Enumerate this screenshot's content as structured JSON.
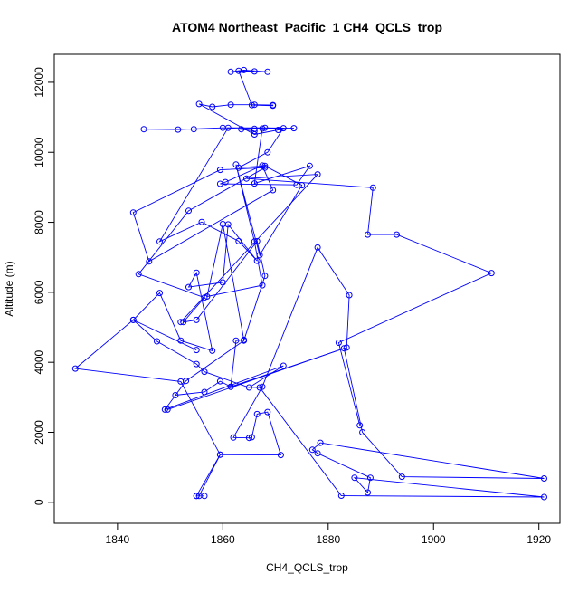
{
  "chart_data": {
    "type": "line",
    "title": "ATOM4 Northeast_Pacific_1 CH4_QCLS_trop",
    "xlabel": "CH4_QCLS_trop",
    "ylabel": "Altitude (m)",
    "xlim": [
      1828,
      1924
    ],
    "ylim": [
      -600,
      12800
    ],
    "xticks": [
      1840,
      1860,
      1880,
      1900,
      1920
    ],
    "yticks": [
      0,
      2000,
      4000,
      6000,
      8000,
      10000,
      12000
    ],
    "xtick_labels": [
      "1840",
      "1860",
      "1880",
      "1900",
      "1920"
    ],
    "ytick_labels": [
      "0",
      "2000",
      "4000",
      "6000",
      "8000",
      "10000",
      "12000"
    ],
    "grid": false,
    "marker": "open-circle",
    "series_color": "#0000ff",
    "series": [
      {
        "x": [
          1855.0,
          1856.5,
          1855.5,
          1859.5,
          1852.0,
          1832.0,
          1843.0,
          1847.5,
          1855.0,
          1856.5,
          1865.0,
          1871.5,
          1849.0,
          1853.0,
          1864.0,
          1868.0,
          1866.5,
          1855.0,
          1852.5,
          1856.5,
          1844.0,
          1853.5,
          1868.0,
          1859.5,
          1843.0,
          1846.0,
          1869.5,
          1867.5,
          1860.5,
          1859.5,
          1874.0,
          1876.5,
          1866.0,
          1867.5,
          1854.5,
          1845.0,
          1851.5,
          1860.0,
          1868.0,
          1873.5,
          1870.5,
          1866.0,
          1855.5,
          1858.0,
          1861.5,
          1866.0,
          1869.5,
          1869.5,
          1865.5,
          1863.0,
          1866.0,
          1861.5,
          1864.0,
          1868.5
        ],
        "y": [
          180,
          180,
          180,
          1360,
          3450,
          3820,
          5210,
          4600,
          3950,
          3730,
          3280,
          3900,
          2650,
          3470,
          4620,
          6470,
          7460,
          5210,
          5150,
          5850,
          6520,
          8330,
          9560,
          9500,
          8280,
          6880,
          8920,
          9620,
          9150,
          9100,
          9070,
          9610,
          9110,
          10680,
          10660,
          10660,
          10650,
          10700,
          10700,
          10690,
          10640,
          10510,
          11380,
          11300,
          11360,
          11360,
          11350,
          11330,
          11350,
          12330,
          12310,
          12300,
          12350,
          12300
        ]
      },
      {
        "x": [
          1855.0,
          1859.5,
          1871.0,
          1868.5,
          1866.5,
          1865.5,
          1865.0,
          1862.0,
          1867.5,
          1878.0,
          1884.0,
          1883.5,
          1861.5,
          1862.5,
          1864.0,
          1860.0,
          1857.0,
          1867.5,
          1866.0,
          1862.5,
          1867.0,
          1875.0,
          1868.0,
          1863.0,
          1868.5,
          1871.5,
          1866.0,
          1863.5,
          1866.0,
          1861.0,
          1848.0,
          1856.0,
          1863.0,
          1866.5,
          1861.0,
          1860.0,
          1853.5,
          1855.0,
          1858.0,
          1852.0,
          1848.0,
          1843.0,
          1855.0
        ],
        "y": [
          180,
          1360,
          1350,
          2580,
          2520,
          1860,
          1840,
          1850,
          3300,
          7280,
          5920,
          4420,
          3300,
          4620,
          4640,
          7950,
          5880,
          6200,
          7450,
          9650,
          7060,
          9060,
          9610,
          9560,
          10000,
          10690,
          10670,
          10660,
          10610,
          10700,
          7450,
          8010,
          7460,
          6900,
          7940,
          6280,
          6150,
          6560,
          4330,
          4620,
          5980,
          5210,
          4350
        ]
      },
      {
        "x": [
          1849.5,
          1883.0,
          1886.5,
          1894.0,
          1921.0,
          1878.5,
          1877.0,
          1878.0,
          1888.0,
          1887.5,
          1885.0,
          1921.0,
          1882.5,
          1867.0,
          1861.5,
          1859.5,
          1856.5,
          1851.0
        ],
        "y": [
          2650,
          4400,
          2000,
          730,
          680,
          1700,
          1500,
          1400,
          700,
          280,
          700,
          150,
          190,
          3280,
          3300,
          3460,
          3150,
          3060
        ]
      },
      {
        "x": [
          1852.0,
          1878.0,
          1864.5,
          1888.5,
          1887.5,
          1893.0,
          1911.0,
          1882.0,
          1886.0
        ],
        "y": [
          5150,
          9370,
          9250,
          8990,
          7650,
          7650,
          6550,
          4560,
          2200
        ]
      }
    ]
  }
}
